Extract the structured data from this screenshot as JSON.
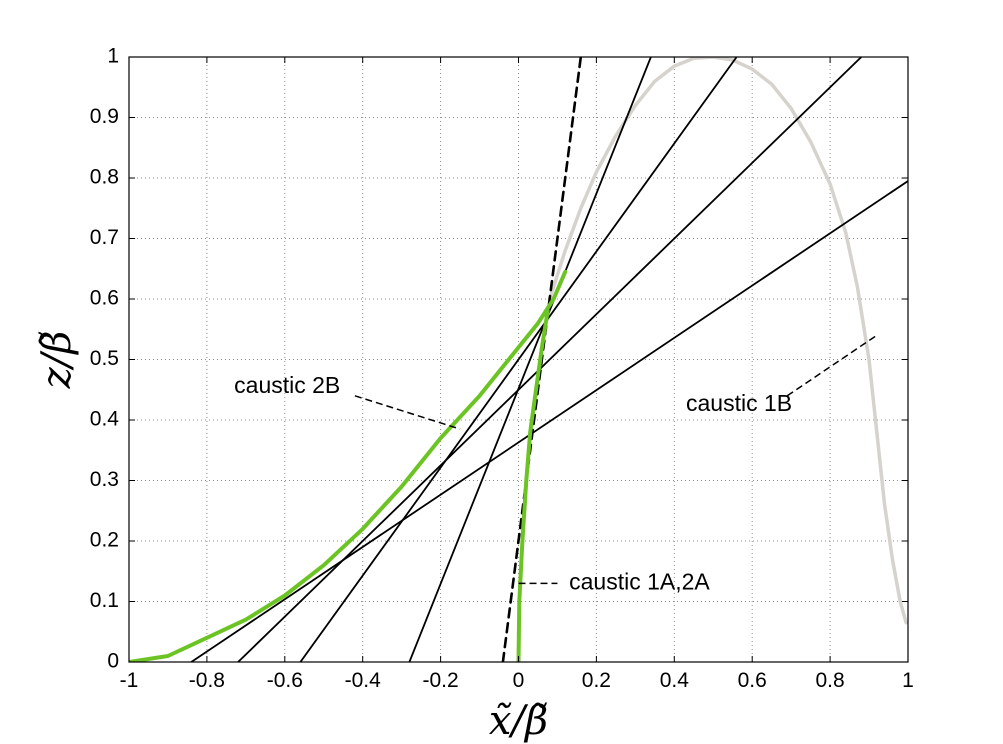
{
  "chart_data": {
    "type": "line",
    "title": "",
    "xlabel": "x̃/β̃",
    "ylabel": "z/β̃",
    "xlim": [
      -1,
      1
    ],
    "ylim": [
      0,
      1
    ],
    "grid": true,
    "x_ticks": [
      "-1",
      "-0.8",
      "-0.6",
      "-0.4",
      "-0.2",
      "0",
      "0.2",
      "0.4",
      "0.6",
      "0.8",
      "1"
    ],
    "y_ticks": [
      "0",
      "0.1",
      "0.2",
      "0.3",
      "0.4",
      "0.5",
      "0.6",
      "0.7",
      "0.8",
      "0.9",
      "1"
    ],
    "series": [
      {
        "style": "gray-thick",
        "color": "#d6d2cd",
        "points": [
          [
            0.08,
            0.6
          ],
          [
            0.12,
            0.68
          ],
          [
            0.16,
            0.75
          ],
          [
            0.2,
            0.81
          ],
          [
            0.25,
            0.87
          ],
          [
            0.3,
            0.92
          ],
          [
            0.35,
            0.96
          ],
          [
            0.4,
            0.985
          ],
          [
            0.45,
            0.998
          ],
          [
            0.5,
            1.0
          ],
          [
            0.55,
            0.995
          ],
          [
            0.6,
            0.98
          ],
          [
            0.65,
            0.955
          ],
          [
            0.7,
            0.915
          ],
          [
            0.75,
            0.86
          ],
          [
            0.8,
            0.79
          ],
          [
            0.84,
            0.71
          ],
          [
            0.87,
            0.62
          ],
          [
            0.9,
            0.5
          ],
          [
            0.92,
            0.38
          ],
          [
            0.94,
            0.26
          ],
          [
            0.96,
            0.17
          ],
          [
            0.98,
            0.1
          ],
          [
            0.995,
            0.065
          ]
        ]
      },
      {
        "style": "green-thick",
        "color": "#6cc424",
        "points": [
          [
            -1,
            0
          ],
          [
            -0.9,
            0.01
          ],
          [
            -0.8,
            0.04
          ],
          [
            -0.7,
            0.07
          ],
          [
            -0.6,
            0.11
          ],
          [
            -0.5,
            0.16
          ],
          [
            -0.4,
            0.22
          ],
          [
            -0.3,
            0.29
          ],
          [
            -0.2,
            0.37
          ],
          [
            -0.1,
            0.44
          ],
          [
            -0.05,
            0.48
          ],
          [
            0,
            0.52
          ],
          [
            0.05,
            0.56
          ],
          [
            0.09,
            0.6
          ],
          [
            0.12,
            0.645
          ]
        ]
      },
      {
        "style": "green-thick",
        "color": "#6cc424",
        "points": [
          [
            0,
            0
          ],
          [
            0.002,
            0.1
          ],
          [
            0.01,
            0.2
          ],
          [
            0.02,
            0.3
          ],
          [
            0.03,
            0.38
          ],
          [
            0.045,
            0.45
          ],
          [
            0.06,
            0.52
          ],
          [
            0.075,
            0.58
          ]
        ]
      },
      {
        "style": "dashed",
        "color": "#000000",
        "points": [
          [
            -0.04,
            0
          ],
          [
            0.16,
            1.0
          ]
        ]
      },
      {
        "style": "solid",
        "color": "#000000",
        "points": [
          [
            -0.28,
            0
          ],
          [
            0.34,
            1.0
          ]
        ]
      },
      {
        "style": "solid",
        "color": "#000000",
        "points": [
          [
            -0.56,
            0
          ],
          [
            0.56,
            1.0
          ]
        ]
      },
      {
        "style": "solid",
        "color": "#000000",
        "points": [
          [
            -0.72,
            0
          ],
          [
            0.88,
            1.0
          ]
        ]
      },
      {
        "style": "solid",
        "color": "#000000",
        "points": [
          [
            -0.84,
            0
          ],
          [
            1.0,
            0.795
          ]
        ]
      }
    ],
    "annotations": [
      {
        "text": "caustic 2B",
        "tx": -0.73,
        "ty": 0.455,
        "line": [
          [
            -0.42,
            0.44
          ],
          [
            -0.15,
            0.385
          ]
        ]
      },
      {
        "text": "caustic 1B",
        "tx": 0.43,
        "ty": 0.425,
        "line": [
          [
            0.69,
            0.44
          ],
          [
            0.92,
            0.54
          ]
        ]
      },
      {
        "text": "caustic 1A,2A",
        "tx": 0.13,
        "ty": 0.13,
        "line": [
          [
            0.0,
            0.13
          ],
          [
            0.1,
            0.13
          ]
        ]
      }
    ]
  }
}
